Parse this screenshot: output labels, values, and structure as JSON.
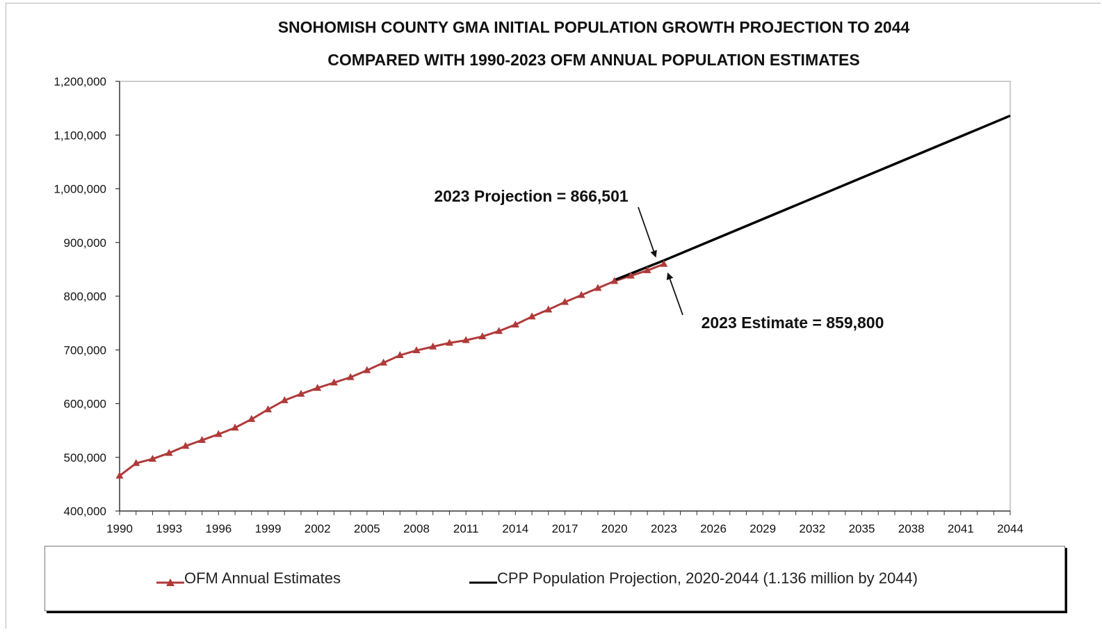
{
  "chart_data": {
    "type": "line",
    "title": "SNOHOMISH COUNTY GMA INITIAL POPULATION GROWTH PROJECTION TO 2044",
    "subtitle": "COMPARED WITH 1990-2023 OFM ANNUAL POPULATION ESTIMATES",
    "xlim": [
      1990,
      2044
    ],
    "ylim": [
      400000,
      1200000
    ],
    "x_ticks": [
      "1990",
      "1993",
      "1996",
      "1999",
      "2002",
      "2005",
      "2008",
      "2011",
      "2014",
      "2017",
      "2020",
      "2023",
      "2026",
      "2029",
      "2032",
      "2035",
      "2038",
      "2041",
      "2044"
    ],
    "y_ticks": [
      "400,000",
      "500,000",
      "600,000",
      "700,000",
      "800,000",
      "900,000",
      "1,000,000",
      "1,100,000",
      "1,200,000"
    ],
    "grid": false,
    "legend_position": "bottom",
    "series": [
      {
        "name": "OFM Annual Estimates",
        "color": "#b03a3a",
        "marker": "triangle",
        "x": [
          1990,
          1991,
          1992,
          1993,
          1994,
          1995,
          1996,
          1997,
          1998,
          1999,
          2000,
          2001,
          2002,
          2003,
          2004,
          2005,
          2006,
          2007,
          2008,
          2009,
          2010,
          2011,
          2012,
          2013,
          2014,
          2015,
          2016,
          2017,
          2018,
          2019,
          2020,
          2021,
          2022,
          2023
        ],
        "values": [
          465600,
          489000,
          497000,
          508000,
          521000,
          532000,
          543000,
          555000,
          571000,
          589000,
          606000,
          618000,
          629000,
          639000,
          649000,
          662000,
          676000,
          690000,
          699000,
          706000,
          713000,
          718000,
          725000,
          735000,
          747000,
          762000,
          775000,
          789000,
          802000,
          815000,
          828000,
          838000,
          848000,
          859800
        ]
      },
      {
        "name": "CPP Population Projection, 2020-2044 (1.136 million by 2044)",
        "color": "#000000",
        "marker": "none",
        "x": [
          2020,
          2023,
          2044
        ],
        "values": [
          830000,
          866501,
          1136000
        ]
      }
    ],
    "annotations": [
      {
        "text": "2023 Projection = 866,501",
        "x": 2023,
        "y": 866501
      },
      {
        "text": "2023 Estimate = 859,800",
        "x": 2023,
        "y": 859800
      }
    ]
  },
  "legend": {
    "ofm_label": "OFM Annual Estimates",
    "cpp_label": "CPP Population Projection, 2020-2044 (1.136 million by 2044)"
  }
}
